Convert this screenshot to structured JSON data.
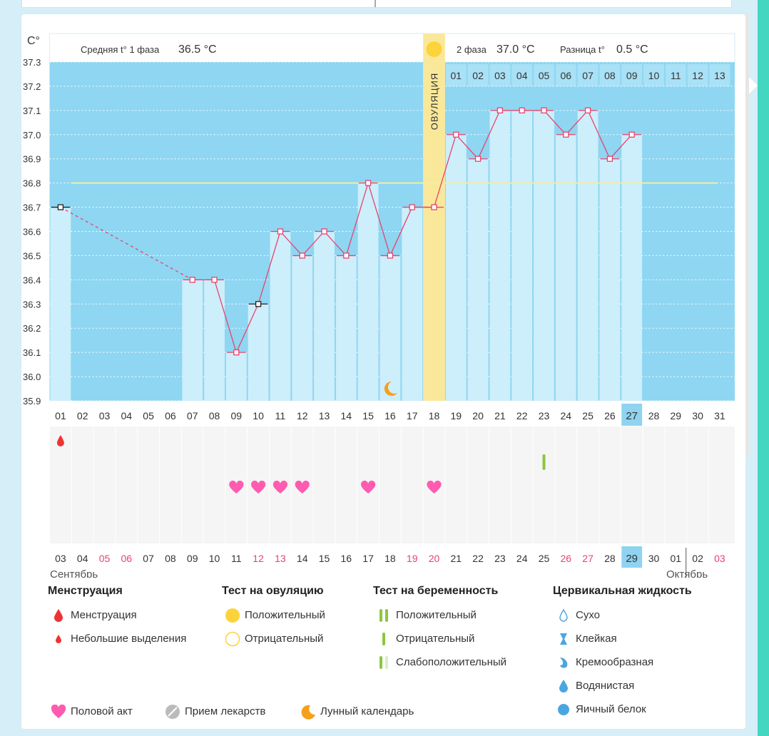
{
  "header": {
    "unit": "C°",
    "phase1_label": "Средняя t° 1 фаза",
    "phase1_value": "36.5 °C",
    "phase2_label": "2 фаза",
    "phase2_value": "37.0 °C",
    "diff_label": "Разница t°",
    "diff_value": "0.5 °C",
    "ovulation_label": "ОВУЛЯЦИЯ"
  },
  "chart_data": {
    "type": "line",
    "ylim": [
      35.9,
      37.3
    ],
    "yticks": [
      "37.3",
      "37.2",
      "37.1",
      "37.0",
      "36.9",
      "36.8",
      "36.7",
      "36.6",
      "36.5",
      "36.4",
      "36.3",
      "36.2",
      "36.1",
      "36.0",
      "35.9"
    ],
    "cycle_days": [
      "01",
      "02",
      "03",
      "04",
      "05",
      "06",
      "07",
      "08",
      "09",
      "10",
      "11",
      "12",
      "13",
      "14",
      "15",
      "16",
      "17",
      "18",
      "19",
      "20",
      "21",
      "22",
      "23",
      "24",
      "25",
      "26",
      "27",
      "28",
      "29",
      "30",
      "31"
    ],
    "phase2_days": [
      "01",
      "02",
      "03",
      "04",
      "05",
      "06",
      "07",
      "08",
      "09",
      "10",
      "11",
      "12",
      "13"
    ],
    "current_cycle_day": "27",
    "ovulation_day": 18,
    "coverline": 36.8,
    "temperatures": [
      {
        "day": 1,
        "t": 36.7,
        "mark": "black"
      },
      {
        "day": 7,
        "t": 36.4,
        "mark": "pink"
      },
      {
        "day": 8,
        "t": 36.4,
        "mark": "pink"
      },
      {
        "day": 9,
        "t": 36.1,
        "mark": "pink"
      },
      {
        "day": 10,
        "t": 36.3,
        "mark": "black"
      },
      {
        "day": 11,
        "t": 36.6,
        "mark": "pink"
      },
      {
        "day": 12,
        "t": 36.5,
        "mark": "pink"
      },
      {
        "day": 13,
        "t": 36.6,
        "mark": "pink"
      },
      {
        "day": 14,
        "t": 36.5,
        "mark": "pink"
      },
      {
        "day": 15,
        "t": 36.8,
        "mark": "pink"
      },
      {
        "day": 16,
        "t": 36.5,
        "mark": "pink"
      },
      {
        "day": 17,
        "t": 36.7,
        "mark": "pink"
      },
      {
        "day": 18,
        "t": 36.7,
        "mark": "pink"
      },
      {
        "day": 19,
        "t": 37.0,
        "mark": "pink"
      },
      {
        "day": 20,
        "t": 36.9,
        "mark": "pink"
      },
      {
        "day": 21,
        "t": 37.1,
        "mark": "pink"
      },
      {
        "day": 22,
        "t": 37.1,
        "mark": "pink"
      },
      {
        "day": 23,
        "t": 37.1,
        "mark": "pink"
      },
      {
        "day": 24,
        "t": 37.0,
        "mark": "pink"
      },
      {
        "day": 25,
        "t": 37.1,
        "mark": "pink"
      },
      {
        "day": 26,
        "t": 36.9,
        "mark": "pink"
      },
      {
        "day": 27,
        "t": 37.0,
        "mark": "pink"
      }
    ],
    "moon_day": 16,
    "menstruation_small_day": 1,
    "pregnancy_test_negative_day": 23,
    "intercourse_days": [
      9,
      10,
      11,
      12,
      15,
      18
    ],
    "calendar_dates": [
      {
        "d": "03"
      },
      {
        "d": "04"
      },
      {
        "d": "05",
        "red": true
      },
      {
        "d": "06",
        "red": true
      },
      {
        "d": "07"
      },
      {
        "d": "08"
      },
      {
        "d": "09"
      },
      {
        "d": "10"
      },
      {
        "d": "11"
      },
      {
        "d": "12",
        "red": true
      },
      {
        "d": "13",
        "red": true
      },
      {
        "d": "14"
      },
      {
        "d": "15"
      },
      {
        "d": "16"
      },
      {
        "d": "17"
      },
      {
        "d": "18"
      },
      {
        "d": "19",
        "red": true
      },
      {
        "d": "20",
        "red": true
      },
      {
        "d": "21"
      },
      {
        "d": "22"
      },
      {
        "d": "23"
      },
      {
        "d": "24"
      },
      {
        "d": "25"
      },
      {
        "d": "26",
        "red": true
      },
      {
        "d": "27",
        "red": true
      },
      {
        "d": "28"
      },
      {
        "d": "29",
        "today": true
      },
      {
        "d": "30"
      },
      {
        "d": "01"
      },
      {
        "d": "02"
      },
      {
        "d": "03",
        "red": true
      }
    ],
    "month1": "Сентябрь",
    "month2": "Октябрь"
  },
  "colors": {
    "sky": "#8ed6f2",
    "bar": "#cdeefb",
    "line": "#e8436e",
    "ovulation": "#fae89a",
    "heart": "#ff5bb0",
    "drop": "#ee3333",
    "moon": "#f5a01a",
    "green": "#8cc63f",
    "today": "#8fd3f0"
  },
  "legend": {
    "menstruation": {
      "title": "Менструация",
      "items": [
        "Менструация",
        "Небольшие выделения"
      ]
    },
    "ovulation_test": {
      "title": "Тест на овуляцию",
      "items": [
        "Положительный",
        "Отрицательный"
      ]
    },
    "pregnancy_test": {
      "title": "Тест на беременность",
      "items": [
        "Положительный",
        "Отрицательный",
        "Слабоположительный"
      ]
    },
    "cervical": {
      "title": "Цервикальная жидкость",
      "items": [
        "Сухо",
        "Клейкая",
        "Кремообразная",
        "Водянистая",
        "Яичный белок"
      ]
    },
    "bottom": {
      "intercourse": "Половой акт",
      "medicine": "Прием лекарств",
      "lunar": "Лунный календарь"
    }
  }
}
